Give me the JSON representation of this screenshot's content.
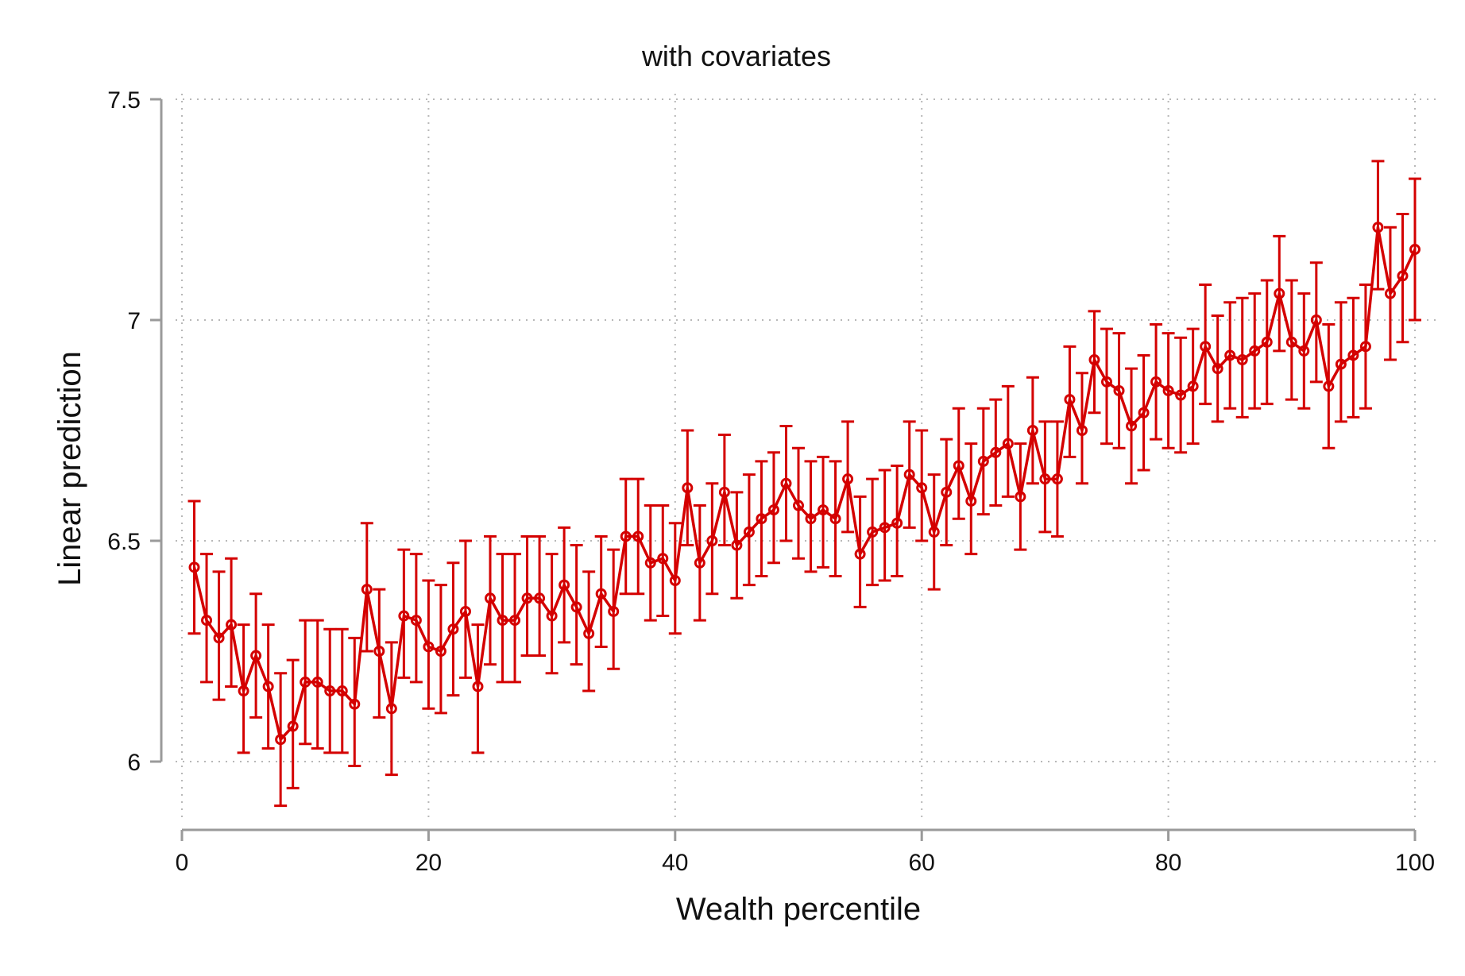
{
  "chart_data": {
    "type": "line",
    "title": "with covariates",
    "xlabel": "Wealth percentile",
    "ylabel": "Linear prediction",
    "xlim": [
      0,
      100
    ],
    "ylim": [
      5.85,
      7.55
    ],
    "xticks": [
      0,
      20,
      40,
      60,
      80,
      100
    ],
    "xtick_labels": [
      "0",
      "20",
      "40",
      "60",
      "80",
      "100"
    ],
    "yticks": [
      6,
      6.5,
      7,
      7.5
    ],
    "ytick_labels": [
      "6",
      "6.5",
      "7",
      "7.5"
    ],
    "grid": true,
    "legend": "none",
    "error_bars": true,
    "color": "#d40000",
    "x": [
      1,
      2,
      3,
      4,
      5,
      6,
      7,
      8,
      9,
      10,
      11,
      12,
      13,
      14,
      15,
      16,
      17,
      18,
      19,
      20,
      21,
      22,
      23,
      24,
      25,
      26,
      27,
      28,
      29,
      30,
      31,
      32,
      33,
      34,
      35,
      36,
      37,
      38,
      39,
      40,
      41,
      42,
      43,
      44,
      45,
      46,
      47,
      48,
      49,
      50,
      51,
      52,
      53,
      54,
      55,
      56,
      57,
      58,
      59,
      60,
      61,
      62,
      63,
      64,
      65,
      66,
      67,
      68,
      69,
      70,
      71,
      72,
      73,
      74,
      75,
      76,
      77,
      78,
      79,
      80,
      81,
      82,
      83,
      84,
      85,
      86,
      87,
      88,
      89,
      90,
      91,
      92,
      93,
      94,
      95,
      96,
      97,
      98,
      99,
      100
    ],
    "y": [
      6.44,
      6.32,
      6.28,
      6.31,
      6.16,
      6.24,
      6.17,
      6.05,
      6.08,
      6.18,
      6.18,
      6.16,
      6.16,
      6.13,
      6.39,
      6.25,
      6.12,
      6.33,
      6.32,
      6.26,
      6.25,
      6.3,
      6.34,
      6.17,
      6.37,
      6.32,
      6.32,
      6.37,
      6.37,
      6.33,
      6.4,
      6.35,
      6.29,
      6.38,
      6.34,
      6.51,
      6.51,
      6.45,
      6.46,
      6.41,
      6.62,
      6.45,
      6.5,
      6.61,
      6.49,
      6.52,
      6.55,
      6.57,
      6.63,
      6.58,
      6.55,
      6.57,
      6.55,
      6.64,
      6.47,
      6.52,
      6.53,
      6.54,
      6.65,
      6.62,
      6.52,
      6.61,
      6.67,
      6.59,
      6.68,
      6.7,
      6.72,
      6.6,
      6.75,
      6.64,
      6.64,
      6.82,
      6.75,
      6.91,
      6.86,
      6.84,
      6.76,
      6.79,
      6.86,
      6.84,
      6.83,
      6.85,
      6.94,
      6.89,
      6.92,
      6.91,
      6.93,
      6.95,
      7.06,
      6.95,
      6.93,
      7.0,
      6.85,
      6.9,
      6.92,
      6.94,
      7.21,
      7.06,
      7.1,
      7.16
    ],
    "lower": [
      6.29,
      6.18,
      6.14,
      6.17,
      6.02,
      6.1,
      6.03,
      5.9,
      5.94,
      6.04,
      6.03,
      6.02,
      6.02,
      5.99,
      6.25,
      6.1,
      5.97,
      6.19,
      6.18,
      6.12,
      6.11,
      6.15,
      6.19,
      6.02,
      6.22,
      6.18,
      6.18,
      6.24,
      6.24,
      6.2,
      6.27,
      6.22,
      6.16,
      6.26,
      6.21,
      6.38,
      6.38,
      6.32,
      6.33,
      6.29,
      6.49,
      6.32,
      6.38,
      6.49,
      6.37,
      6.4,
      6.42,
      6.45,
      6.5,
      6.46,
      6.43,
      6.44,
      6.42,
      6.52,
      6.35,
      6.4,
      6.41,
      6.42,
      6.53,
      6.5,
      6.39,
      6.49,
      6.55,
      6.47,
      6.56,
      6.58,
      6.6,
      6.48,
      6.63,
      6.52,
      6.51,
      6.69,
      6.63,
      6.79,
      6.72,
      6.71,
      6.63,
      6.66,
      6.73,
      6.71,
      6.7,
      6.72,
      6.81,
      6.77,
      6.8,
      6.78,
      6.8,
      6.81,
      6.93,
      6.82,
      6.8,
      6.86,
      6.71,
      6.77,
      6.78,
      6.8,
      7.07,
      6.91,
      6.95,
      7.0
    ],
    "upper": [
      6.59,
      6.47,
      6.43,
      6.46,
      6.31,
      6.38,
      6.31,
      6.2,
      6.23,
      6.32,
      6.32,
      6.3,
      6.3,
      6.28,
      6.54,
      6.39,
      6.27,
      6.48,
      6.47,
      6.41,
      6.4,
      6.45,
      6.5,
      6.31,
      6.51,
      6.47,
      6.47,
      6.51,
      6.51,
      6.47,
      6.53,
      6.49,
      6.43,
      6.51,
      6.48,
      6.64,
      6.64,
      6.58,
      6.58,
      6.54,
      6.75,
      6.58,
      6.63,
      6.74,
      6.61,
      6.65,
      6.68,
      6.7,
      6.76,
      6.71,
      6.68,
      6.69,
      6.68,
      6.77,
      6.6,
      6.64,
      6.66,
      6.67,
      6.77,
      6.75,
      6.65,
      6.73,
      6.8,
      6.72,
      6.8,
      6.82,
      6.85,
      6.72,
      6.87,
      6.77,
      6.77,
      6.94,
      6.88,
      7.02,
      6.98,
      6.97,
      6.89,
      6.92,
      6.99,
      6.97,
      6.96,
      6.98,
      7.08,
      7.01,
      7.04,
      7.05,
      7.06,
      7.09,
      7.19,
      7.09,
      7.06,
      7.13,
      6.99,
      7.04,
      7.05,
      7.08,
      7.36,
      7.21,
      7.24,
      7.32
    ]
  }
}
